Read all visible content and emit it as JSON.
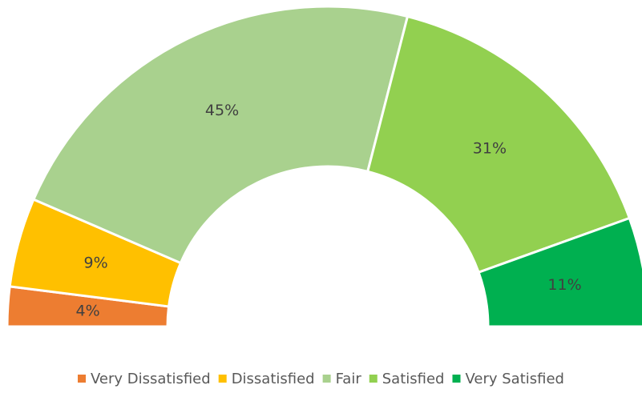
{
  "chart_data": {
    "type": "half-donut",
    "categories": [
      "Very Dissatisfied",
      "Dissatisfied",
      "Fair",
      "Satisfied",
      "Very Satisfied"
    ],
    "values": [
      4,
      9,
      45,
      31,
      11
    ],
    "value_labels": [
      "4%",
      "9%",
      "45%",
      "31%",
      "11%"
    ],
    "colors": [
      "#ED7D31",
      "#FFC000",
      "#A9D18E",
      "#92D050",
      "#00B050"
    ],
    "legend": "bottom"
  }
}
